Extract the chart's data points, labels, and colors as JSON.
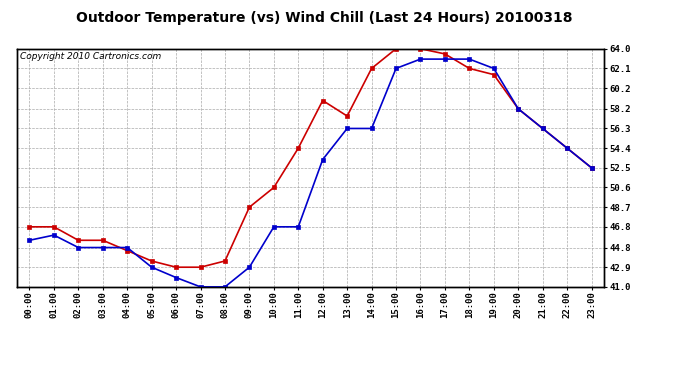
{
  "title": "Outdoor Temperature (vs) Wind Chill (Last 24 Hours) 20100318",
  "copyright": "Copyright 2010 Cartronics.com",
  "hours": [
    0,
    1,
    2,
    3,
    4,
    5,
    6,
    7,
    8,
    9,
    10,
    11,
    12,
    13,
    14,
    15,
    16,
    17,
    18,
    19,
    20,
    21,
    22,
    23
  ],
  "hour_labels": [
    "00:00",
    "01:00",
    "02:00",
    "03:00",
    "04:00",
    "05:00",
    "06:00",
    "07:00",
    "08:00",
    "09:00",
    "10:00",
    "11:00",
    "12:00",
    "13:00",
    "14:00",
    "15:00",
    "16:00",
    "17:00",
    "18:00",
    "19:00",
    "20:00",
    "21:00",
    "22:00",
    "23:00"
  ],
  "temp_red": [
    46.8,
    46.8,
    45.5,
    45.5,
    44.5,
    43.5,
    42.9,
    42.9,
    43.5,
    48.7,
    50.6,
    54.4,
    59.0,
    57.5,
    62.1,
    64.0,
    64.0,
    63.5,
    62.1,
    61.5,
    58.2,
    56.3,
    54.4,
    52.5
  ],
  "wind_blue": [
    45.5,
    46.0,
    44.8,
    44.8,
    44.8,
    42.9,
    41.9,
    41.0,
    41.0,
    42.9,
    46.8,
    46.8,
    53.3,
    56.3,
    56.3,
    62.1,
    63.0,
    63.0,
    63.0,
    62.1,
    58.2,
    56.3,
    54.4,
    52.5
  ],
  "ylim_min": 41.0,
  "ylim_max": 64.0,
  "yticks": [
    41.0,
    42.9,
    44.8,
    46.8,
    48.7,
    50.6,
    52.5,
    54.4,
    56.3,
    58.2,
    60.2,
    62.1,
    64.0
  ],
  "red_color": "#cc0000",
  "blue_color": "#0000cc",
  "fig_bg_color": "#ffffff",
  "plot_bg_color": "#ffffff",
  "grid_color": "#aaaaaa",
  "border_color": "#000000",
  "title_color": "#000000",
  "title_fontsize": 10,
  "copyright_fontsize": 6.5,
  "tick_fontsize": 6.5,
  "tick_color": "#000000",
  "marker": "s",
  "marker_size": 2.5,
  "linewidth": 1.2
}
